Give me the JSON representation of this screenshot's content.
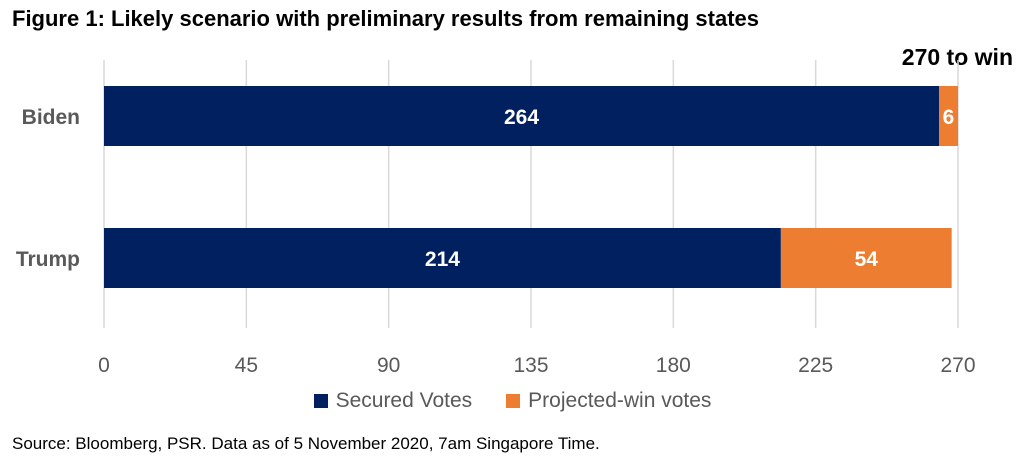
{
  "title": "Figure 1: Likely scenario with preliminary results from remaining states",
  "annotation": "270 to win",
  "source": "Source: Bloomberg, PSR. Data as of 5 November 2020, 7am Singapore Time.",
  "colors": {
    "secured": "#002060",
    "projected": "#ED7D31",
    "grid": "#D9D9D9",
    "axis_text": "#595959"
  },
  "chart_data": {
    "type": "bar",
    "orientation": "horizontal",
    "stacked": true,
    "categories": [
      "Biden",
      "Trump"
    ],
    "series": [
      {
        "name": "Secured Votes",
        "values": [
          264,
          214
        ]
      },
      {
        "name": "Projected-win votes",
        "values": [
          6,
          54
        ]
      }
    ],
    "xlim": [
      0,
      270
    ],
    "xticks": [
      0,
      45,
      90,
      135,
      180,
      225,
      270
    ],
    "grid": true,
    "legend": "bottom",
    "data_labels": true
  }
}
